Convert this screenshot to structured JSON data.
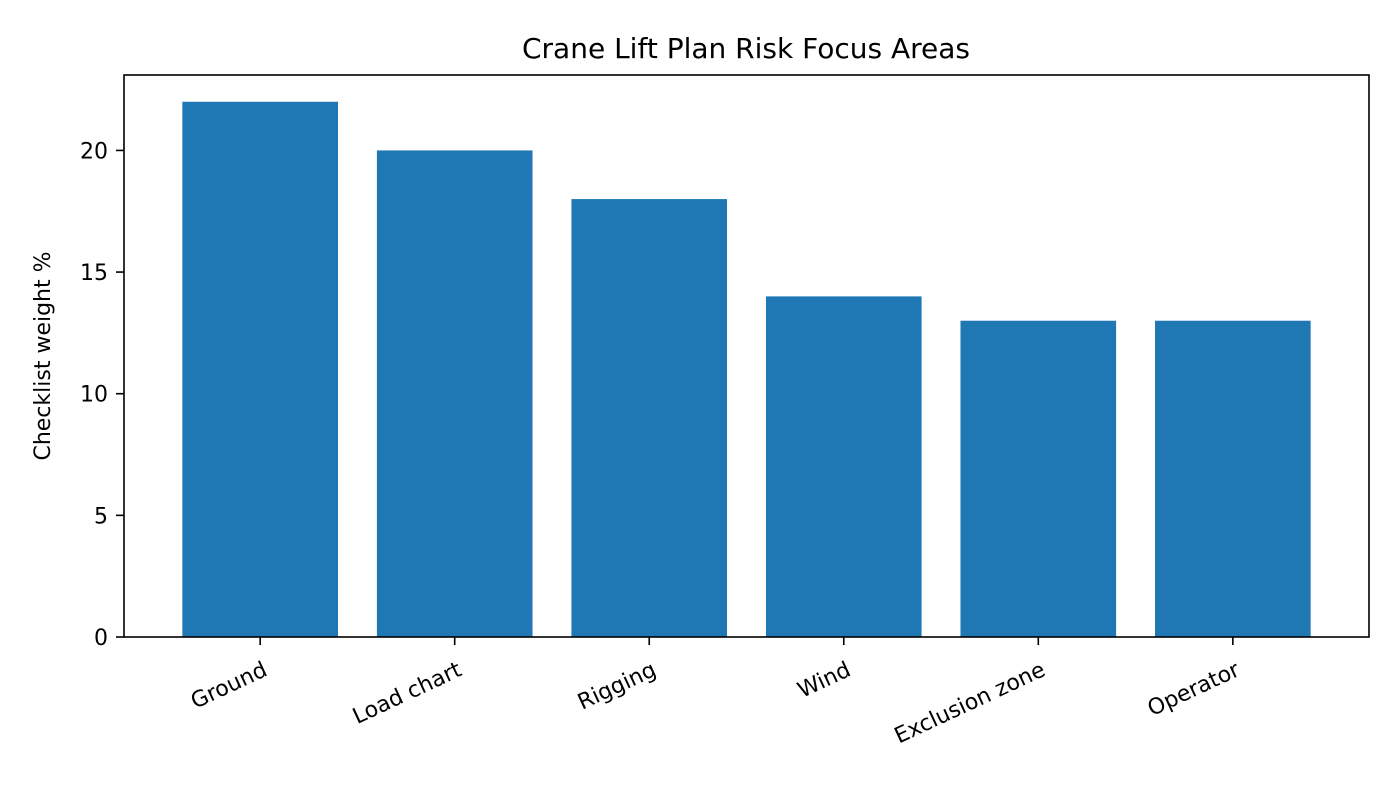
{
  "chart_data": {
    "type": "bar",
    "title": "Crane Lift Plan Risk Focus Areas",
    "xlabel": "",
    "ylabel": "Checklist weight %",
    "categories": [
      "Ground",
      "Load chart",
      "Rigging",
      "Wind",
      "Exclusion zone",
      "Operator"
    ],
    "values": [
      22,
      20,
      18,
      14,
      13,
      13
    ],
    "ylim": [
      0,
      23.1
    ],
    "yticks": [
      0,
      5,
      10,
      15,
      20
    ],
    "grid": false,
    "legend": "none",
    "bar_color": "#1f77b4",
    "xtick_rotation_deg": 25
  }
}
